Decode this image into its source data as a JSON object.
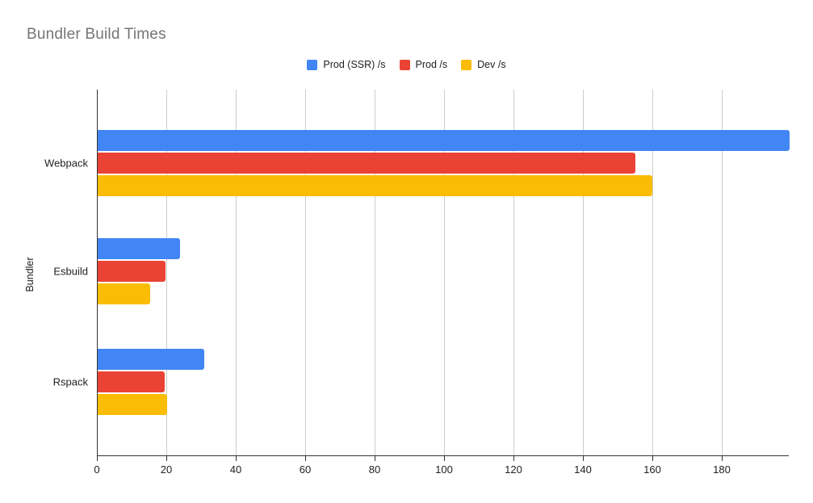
{
  "chart_data": {
    "type": "bar",
    "orientation": "horizontal",
    "title": "Bundler Build Times",
    "xlabel": "",
    "ylabel": "Bundler",
    "categories": [
      "Webpack",
      "Esbuild",
      "Rspack"
    ],
    "series": [
      {
        "name": "Prod (SSR) /s",
        "color": "#4285F4",
        "values": [
          199.3,
          23.8,
          30.8
        ]
      },
      {
        "name": "Prod /s",
        "color": "#EA4335",
        "values": [
          154.9,
          19.5,
          19.2
        ]
      },
      {
        "name": "Dev /s",
        "color": "#FBBC04",
        "values": [
          159.7,
          15.0,
          19.9
        ]
      }
    ],
    "x_axis": {
      "min": 0,
      "max": 199.3,
      "ticks": [
        0,
        20,
        40,
        60,
        80,
        100,
        120,
        140,
        160,
        180
      ]
    },
    "grid": true,
    "legend_position": "top-center",
    "colors": {
      "title": "#757575",
      "text": "#202124",
      "gridline": "#cccccc",
      "axis_line": "#333333",
      "background": "#ffffff"
    }
  }
}
